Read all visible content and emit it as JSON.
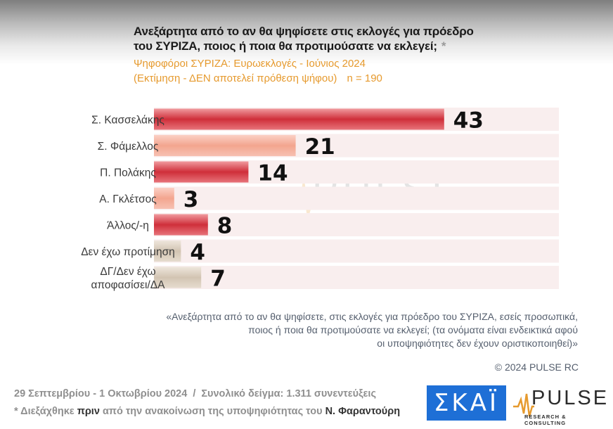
{
  "title_line1": "Ανεξάρτητα από το αν θα ψηφίσετε στις εκλογές για πρόεδρο",
  "title_line2": "του ΣΥΡΙΖΑ, ποιος ή ποια θα προτιμούσατε να εκλεγεί;",
  "title_star": "*",
  "subtitle_line1": "Ψηφοφόροι ΣΥΡΙΖΑ: Ευρωεκλογές - Ιούνιος 2024",
  "subtitle_line2": "(Εκτίμηση - ΔΕΝ αποτελεί πρόθεση ψήφου)",
  "sample_label": "n = 190",
  "watermark": {
    "word": "PULSE",
    "tagline": "RESEARCH & CONSULTING"
  },
  "footnote": {
    "line1": "«Ανεξάρτητα από το αν θα ψηφίσετε, στις εκλογές για πρόεδρο του ΣΥΡΙΖΑ, εσείς προσωπικά,",
    "line2": "ποιος ή ποια θα προτιμούσατε να εκλεγεί; (τα ονόματα είναι ενδεικτικά αφού",
    "line3": "οι υποψηφιότητες δεν έχουν οριστικοποιηθεί)»"
  },
  "copyright": "© 2024 PULSE RC",
  "meta": {
    "dates": "29 Σεπτεμβρίου - 1 Οκτωβρίου 2024",
    "separator": "/",
    "sample": "Συνολικό δείγμα:  1.311 συνεντεύξεις",
    "note_star": "*",
    "note_a": "Διεξάχθηκε",
    "note_b": "πριν",
    "note_c": "από την ανακοίνωση της υποψηφιότητας του",
    "note_d": "Ν. Φαραντούρη"
  },
  "logos": {
    "skai": "ΣΚΑΪ",
    "pulse_word": "PULSE",
    "pulse_tagline": "RESEARCH & CONSULTING"
  },
  "colors": {
    "bar_red_dark": "#cf2f3a",
    "bar_red_light": "#f3a58f",
    "bar_beige": "#d8ccbc",
    "row_bg": "#f9eeee",
    "label_text": "#3b3b3b",
    "value_text": "#111111",
    "subtitle": "#e69a2e"
  },
  "chart_data": {
    "type": "bar",
    "orientation": "horizontal",
    "categories": [
      [
        "Σ. Κασσελάκης"
      ],
      [
        "Σ. Φάμελλος"
      ],
      [
        "Π. Πολάκης"
      ],
      [
        "Α. Γκλέτσος"
      ],
      [
        "Άλλος/-η"
      ],
      [
        "Δεν έχω προτίμηση"
      ],
      [
        "ΔΓ/Δεν έχω",
        "αποφασίσει/ΔΑ"
      ]
    ],
    "values": [
      43,
      21,
      14,
      3,
      8,
      4,
      7
    ],
    "styles": [
      "red",
      "light",
      "red",
      "light",
      "red",
      "beige",
      "beige"
    ],
    "xlim": [
      0,
      60
    ],
    "grid": false,
    "legend": "none"
  }
}
